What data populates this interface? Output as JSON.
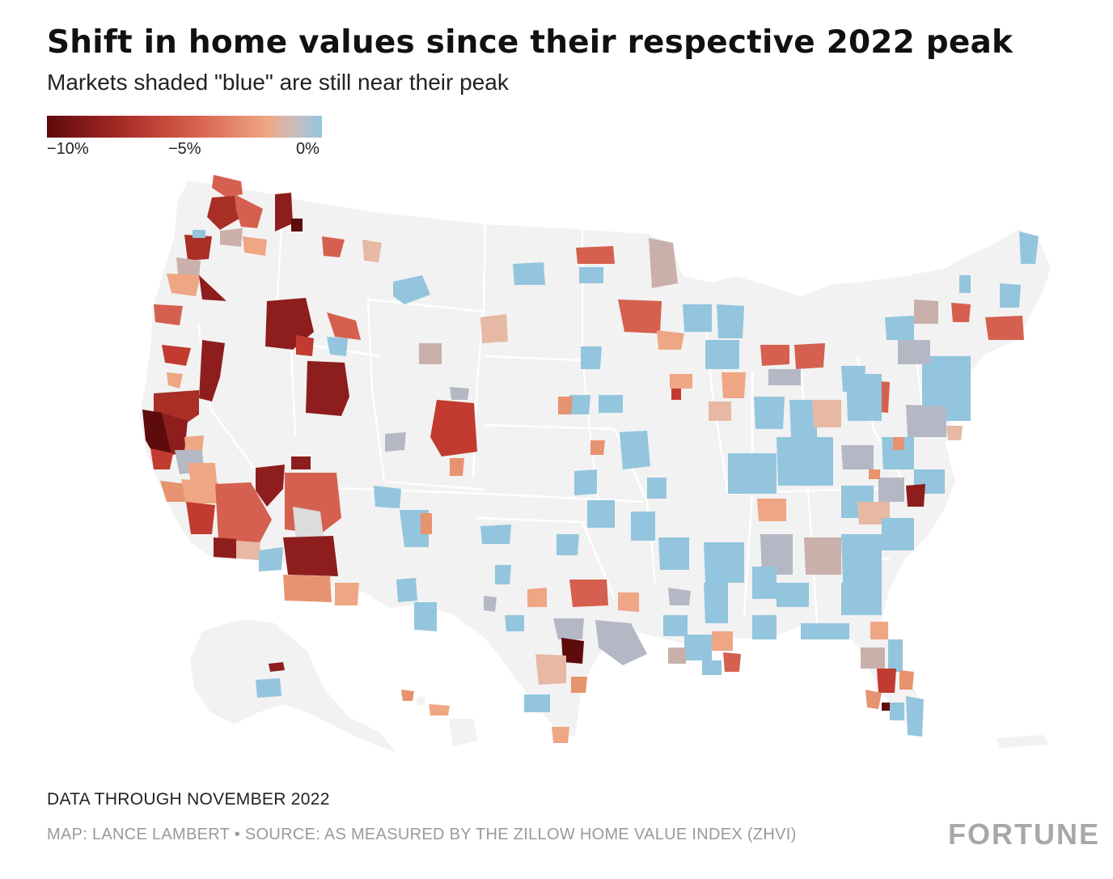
{
  "header": {
    "title": "Shift in home values since their respective 2022 peak",
    "subtitle": "Markets shaded \"blue\" are still near their peak"
  },
  "legend": {
    "min_label": "−10%",
    "mid_label": "−5%",
    "max_label": "0%",
    "color_scale": [
      "#5e0b0b",
      "#8e1e1e",
      "#bf3f34",
      "#dc6a54",
      "#efa684",
      "#c9bdbb",
      "#93c5de"
    ]
  },
  "map": {
    "region": "United States (lower 48, Alaska, Hawaii, Puerto Rico)",
    "unit": "metro areas",
    "land_color": "#f2f2f2",
    "border_color": "#ffffff"
  },
  "footer": {
    "note": "DATA THROUGH NOVEMBER 2022",
    "source": "MAP: LANCE LAMBERT • SOURCE: AS MEASURED BY THE ZILLOW HOME VALUE INDEX (ZHVI)",
    "brand": "FORTUNE"
  }
}
